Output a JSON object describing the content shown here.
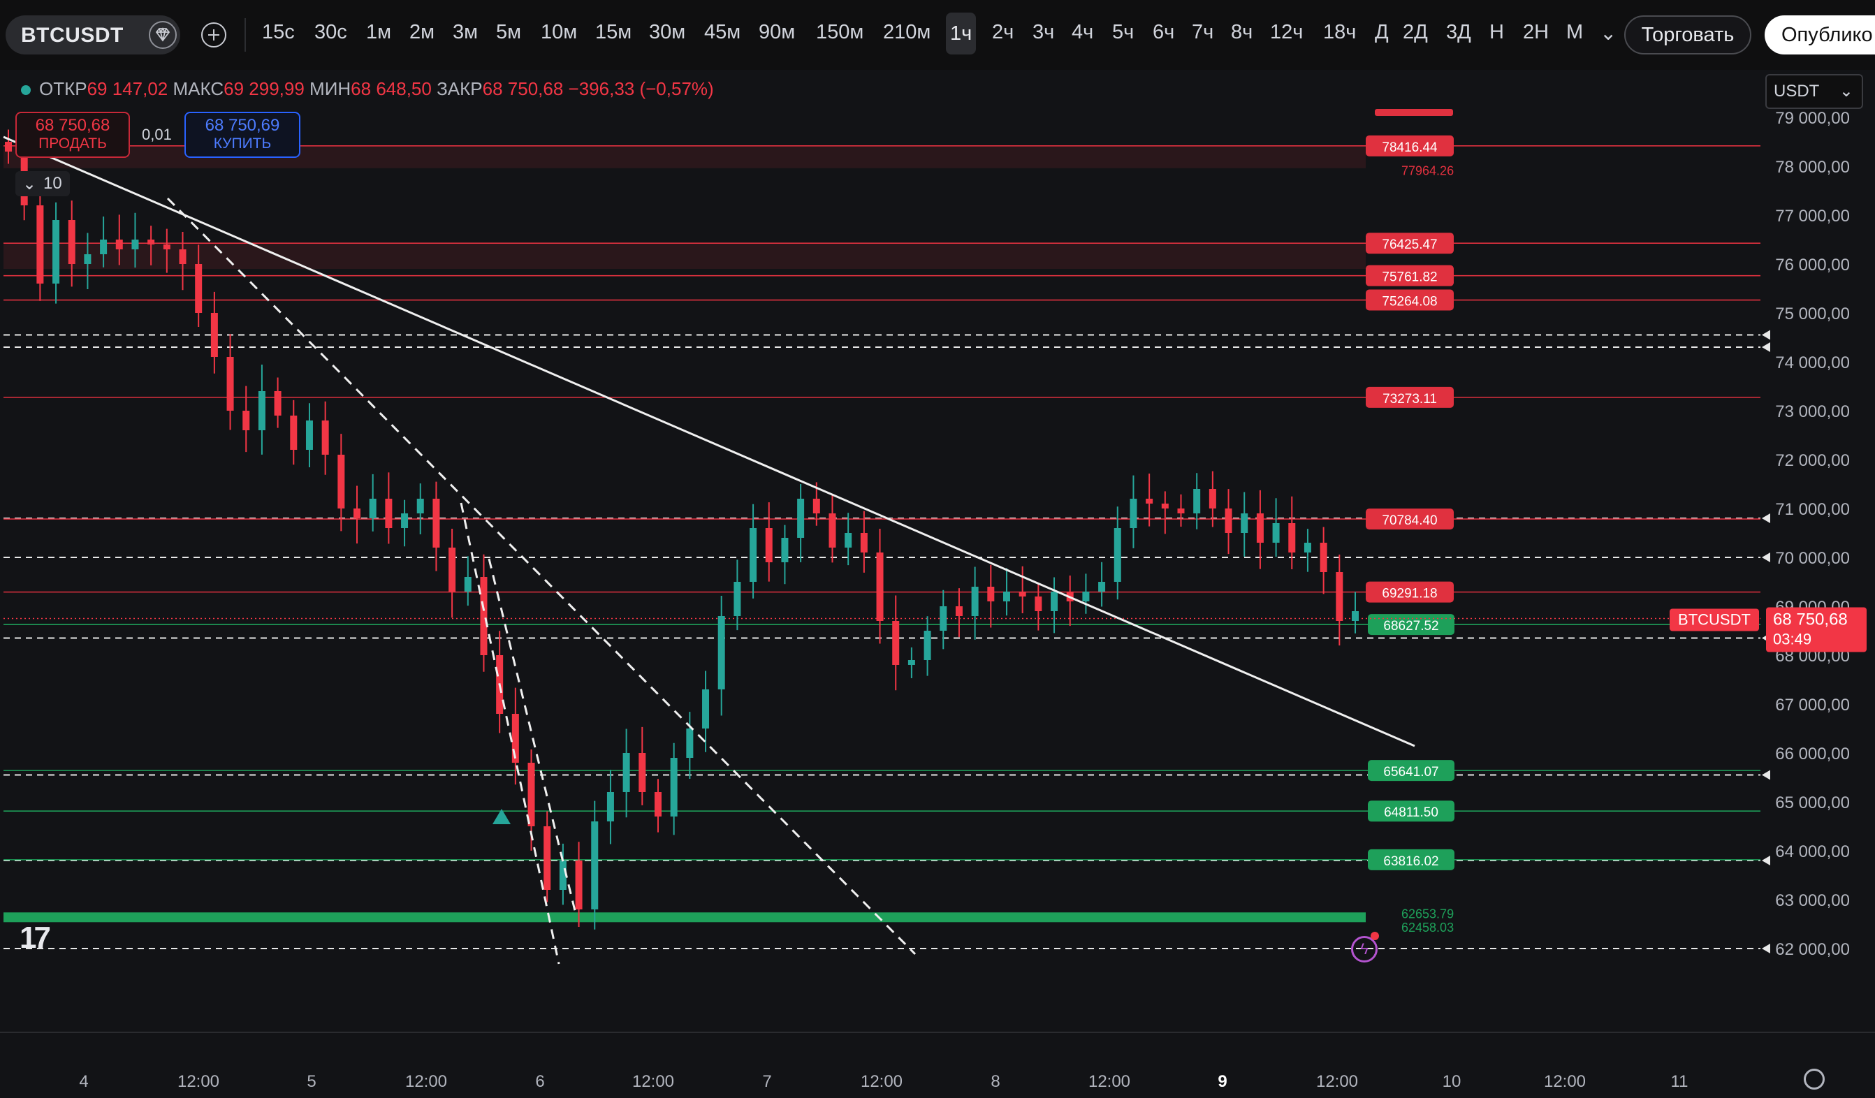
{
  "toolbar": {
    "symbol": "BTCUSDT",
    "intervals": [
      "15с",
      "30с",
      "1м",
      "2м",
      "3м",
      "5м",
      "10м",
      "15м",
      "30м",
      "45м",
      "90м",
      "150м",
      "210м",
      "1ч",
      "2ч",
      "3ч",
      "4ч",
      "5ч",
      "6ч",
      "7ч",
      "8ч",
      "12ч",
      "18ч",
      "Д",
      "2Д",
      "3Д",
      "Н",
      "2Н",
      "М"
    ],
    "active_interval": "1ч",
    "trade_button": "Торговать",
    "publish_button": "Опублико"
  },
  "legend": {
    "open_label": "ОТКР",
    "open": "69 147,02",
    "high_label": "МАКС",
    "high": "69 299,99",
    "low_label": "МИН",
    "low": "68 648,50",
    "close_label": "ЗАКР",
    "close": "68 750,68",
    "change": "−396,33 (−0,57%)"
  },
  "trade_panel": {
    "sell_price": "68 750,68",
    "sell_label": "ПРОДАТЬ",
    "spread": "0,01",
    "buy_price": "68 750,69",
    "buy_label": "КУПИТЬ",
    "quantity": "10"
  },
  "currency": "USDT",
  "price_axis": {
    "ticks": [
      "79 000,00",
      "78 000,00",
      "77 000,00",
      "76 000,00",
      "75 000,00",
      "74 000,00",
      "73 000,00",
      "72 000,00",
      "71 000,00",
      "70 000,00",
      "69 000,00",
      "68 000,00",
      "67 000,00",
      "66 000,00",
      "65 000,00",
      "64 000,00",
      "63 000,00",
      "62 000,00"
    ],
    "current_symbol_label": "BTCUSDT",
    "current_price": "68 750,68",
    "countdown": "03:49"
  },
  "time_axis": [
    "4",
    "12:00",
    "5",
    "12:00",
    "6",
    "12:00",
    "7",
    "12:00",
    "8",
    "12:00",
    "9",
    "12:00",
    "10",
    "12:00",
    "11"
  ],
  "levels": {
    "resistance": [
      "78416.44",
      "76425.47",
      "75761.82",
      "75264.08",
      "73273.11",
      "70784.40",
      "69291.18"
    ],
    "support": [
      "68627.52",
      "65641.07",
      "64811.50",
      "63816.02"
    ],
    "zone_top_labels": [
      "77964.26"
    ],
    "bottom_zone_labels": [
      "62653.79",
      "62458.03"
    ]
  },
  "colors": {
    "up": "#26a69a",
    "down": "#f23645",
    "green_level": "#1ea05a",
    "red_level": "#e0313f"
  }
}
